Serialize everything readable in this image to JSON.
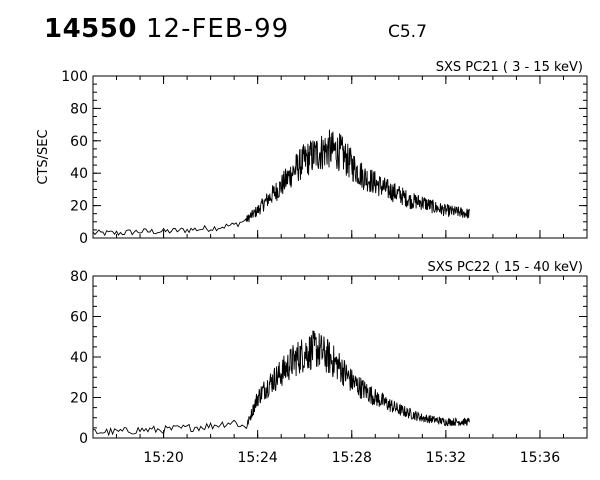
{
  "header": {
    "event_id": "14550",
    "date": "12-FEB-99",
    "flare_class": "C5.7"
  },
  "chart_data": [
    {
      "type": "line",
      "title": "SXS PC21  (  3 - 15 keV)",
      "ylabel": "CTS/SEC",
      "ylim": [
        0,
        100
      ],
      "yticks": [
        "0",
        "20",
        "40",
        "60",
        "80",
        "100"
      ],
      "xlim": [
        "15:17",
        "15:38"
      ],
      "xticks": [],
      "grid": false,
      "series": [
        {
          "x": [
            "15:17",
            "15:18",
            "15:19",
            "15:20",
            "15:21",
            "15:22",
            "15:23",
            "15:23:30",
            "15:24",
            "15:24:30",
            "15:25",
            "15:25:30",
            "15:26",
            "15:26:30",
            "15:27",
            "15:27:30",
            "15:28",
            "15:28:30",
            "15:29",
            "15:29:30",
            "15:30",
            "15:30:30",
            "15:31",
            "15:31:30",
            "15:32",
            "15:32:30",
            "15:33"
          ],
          "y": [
            3,
            3,
            4,
            4,
            5,
            6,
            8,
            11,
            17,
            25,
            32,
            41,
            48,
            52,
            55,
            53,
            45,
            38,
            34,
            30,
            27,
            23,
            22,
            19,
            17,
            16,
            15
          ]
        }
      ]
    },
    {
      "type": "line",
      "title": "SXS PC22  ( 15 - 40 keV)",
      "ylabel": "",
      "ylim": [
        0,
        80
      ],
      "yticks": [
        "0",
        "20",
        "40",
        "60",
        "80"
      ],
      "xlim": [
        "15:17",
        "15:38"
      ],
      "xticks": [
        "15:20",
        "15:24",
        "15:28",
        "15:32",
        "15:36"
      ],
      "grid": false,
      "series": [
        {
          "x": [
            "15:17",
            "15:18",
            "15:19",
            "15:20",
            "15:21",
            "15:22",
            "15:23",
            "15:23:30",
            "15:24",
            "15:24:30",
            "15:25",
            "15:25:30",
            "15:26",
            "15:26:30",
            "15:27",
            "15:27:30",
            "15:28",
            "15:28:30",
            "15:29",
            "15:29:30",
            "15:30",
            "15:30:30",
            "15:31",
            "15:31:30",
            "15:32",
            "15:32:30",
            "15:33"
          ],
          "y": [
            3,
            3,
            4,
            4,
            5,
            6,
            8,
            5,
            20,
            27,
            32,
            38,
            42,
            44,
            40,
            35,
            28,
            24,
            20,
            17,
            14,
            12,
            10,
            9,
            8,
            8,
            8
          ]
        }
      ]
    }
  ]
}
